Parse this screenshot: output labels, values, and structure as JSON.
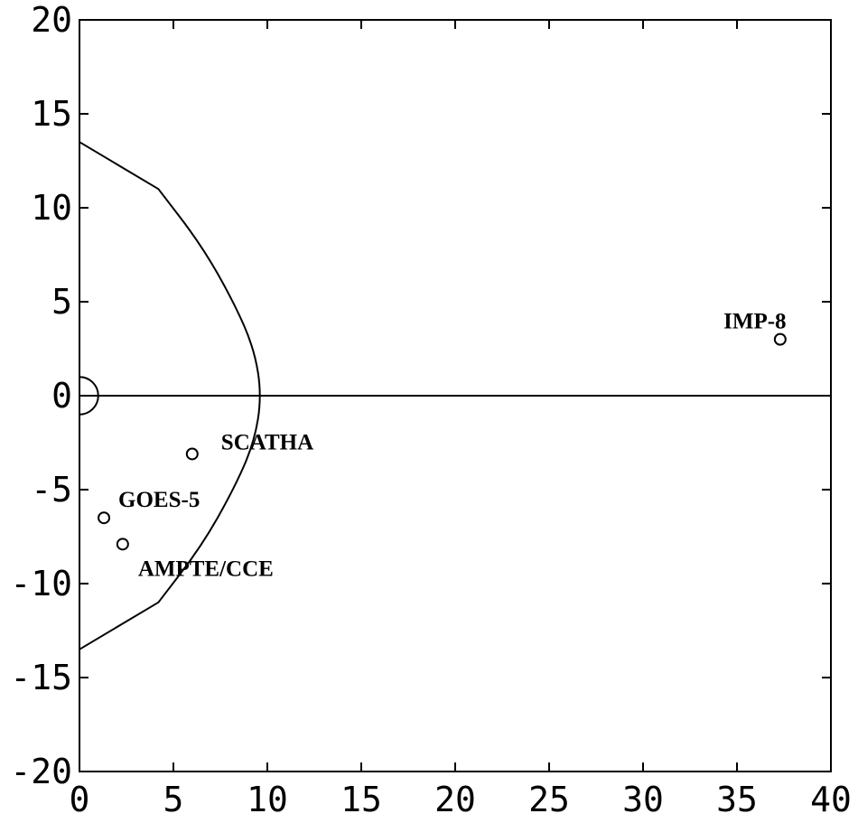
{
  "chart_data": {
    "type": "scatter",
    "title": "",
    "xlabel": "",
    "ylabel": "",
    "xlim": [
      0,
      40
    ],
    "ylim": [
      -20,
      20
    ],
    "x_ticks": [
      "0",
      "5",
      "10",
      "15",
      "20",
      "25",
      "30",
      "35",
      "40"
    ],
    "y_ticks": [
      "20",
      "15",
      "10",
      "5",
      "0",
      "-5",
      "-10",
      "-15",
      "-20"
    ],
    "grid": false,
    "legend": "none",
    "line_color": "#000000",
    "boundary_curve": {
      "x": [
        0,
        4.2,
        6.5,
        8.2,
        9.3,
        9.7,
        9.3,
        8.2,
        6.5,
        4.2,
        0
      ],
      "y": [
        13.5,
        11,
        8,
        5,
        2.5,
        0,
        -2.5,
        -5,
        -8,
        -11,
        -13.5
      ]
    },
    "reference_line_y": 0,
    "earth_semicircle_radius": 1,
    "points": [
      {
        "label": "IMP-8",
        "x": 37.3,
        "y": 3.0
      },
      {
        "label": "SCATHA",
        "x": 6.0,
        "y": -3.1
      },
      {
        "label": "GOES-5",
        "x": 1.3,
        "y": -6.5
      },
      {
        "label": "AMPTE/CCE",
        "x": 2.3,
        "y": -7.9
      }
    ]
  }
}
